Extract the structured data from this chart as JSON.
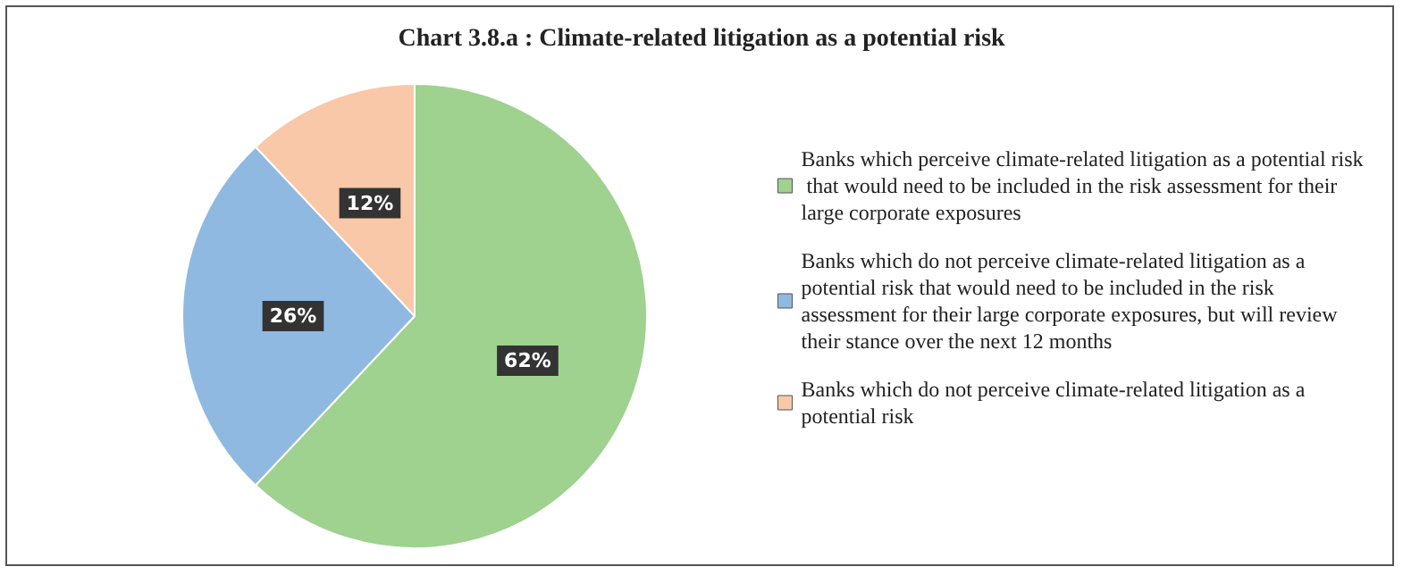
{
  "chart_data": {
    "type": "pie",
    "title": "Chart 3.8.a : Climate-related litigation as a potential risk",
    "categories": [
      "Banks which perceive climate-related litigation as a potential risk that would need to be included in the risk assessment for their large corporate exposures",
      "Banks which do not perceive climate-related litigation as a potential risk that would need to be included in the risk assessment for their large corporate exposures, but will review their stance over the next 12 months",
      "Banks which do not perceive climate-related litigation as a potential risk"
    ],
    "values": [
      62,
      26,
      12
    ],
    "colors": [
      "#9fd18f",
      "#8fb9e0",
      "#f9c8a8"
    ],
    "value_labels": [
      "62%",
      "26%",
      "12%"
    ],
    "legend": "right"
  }
}
